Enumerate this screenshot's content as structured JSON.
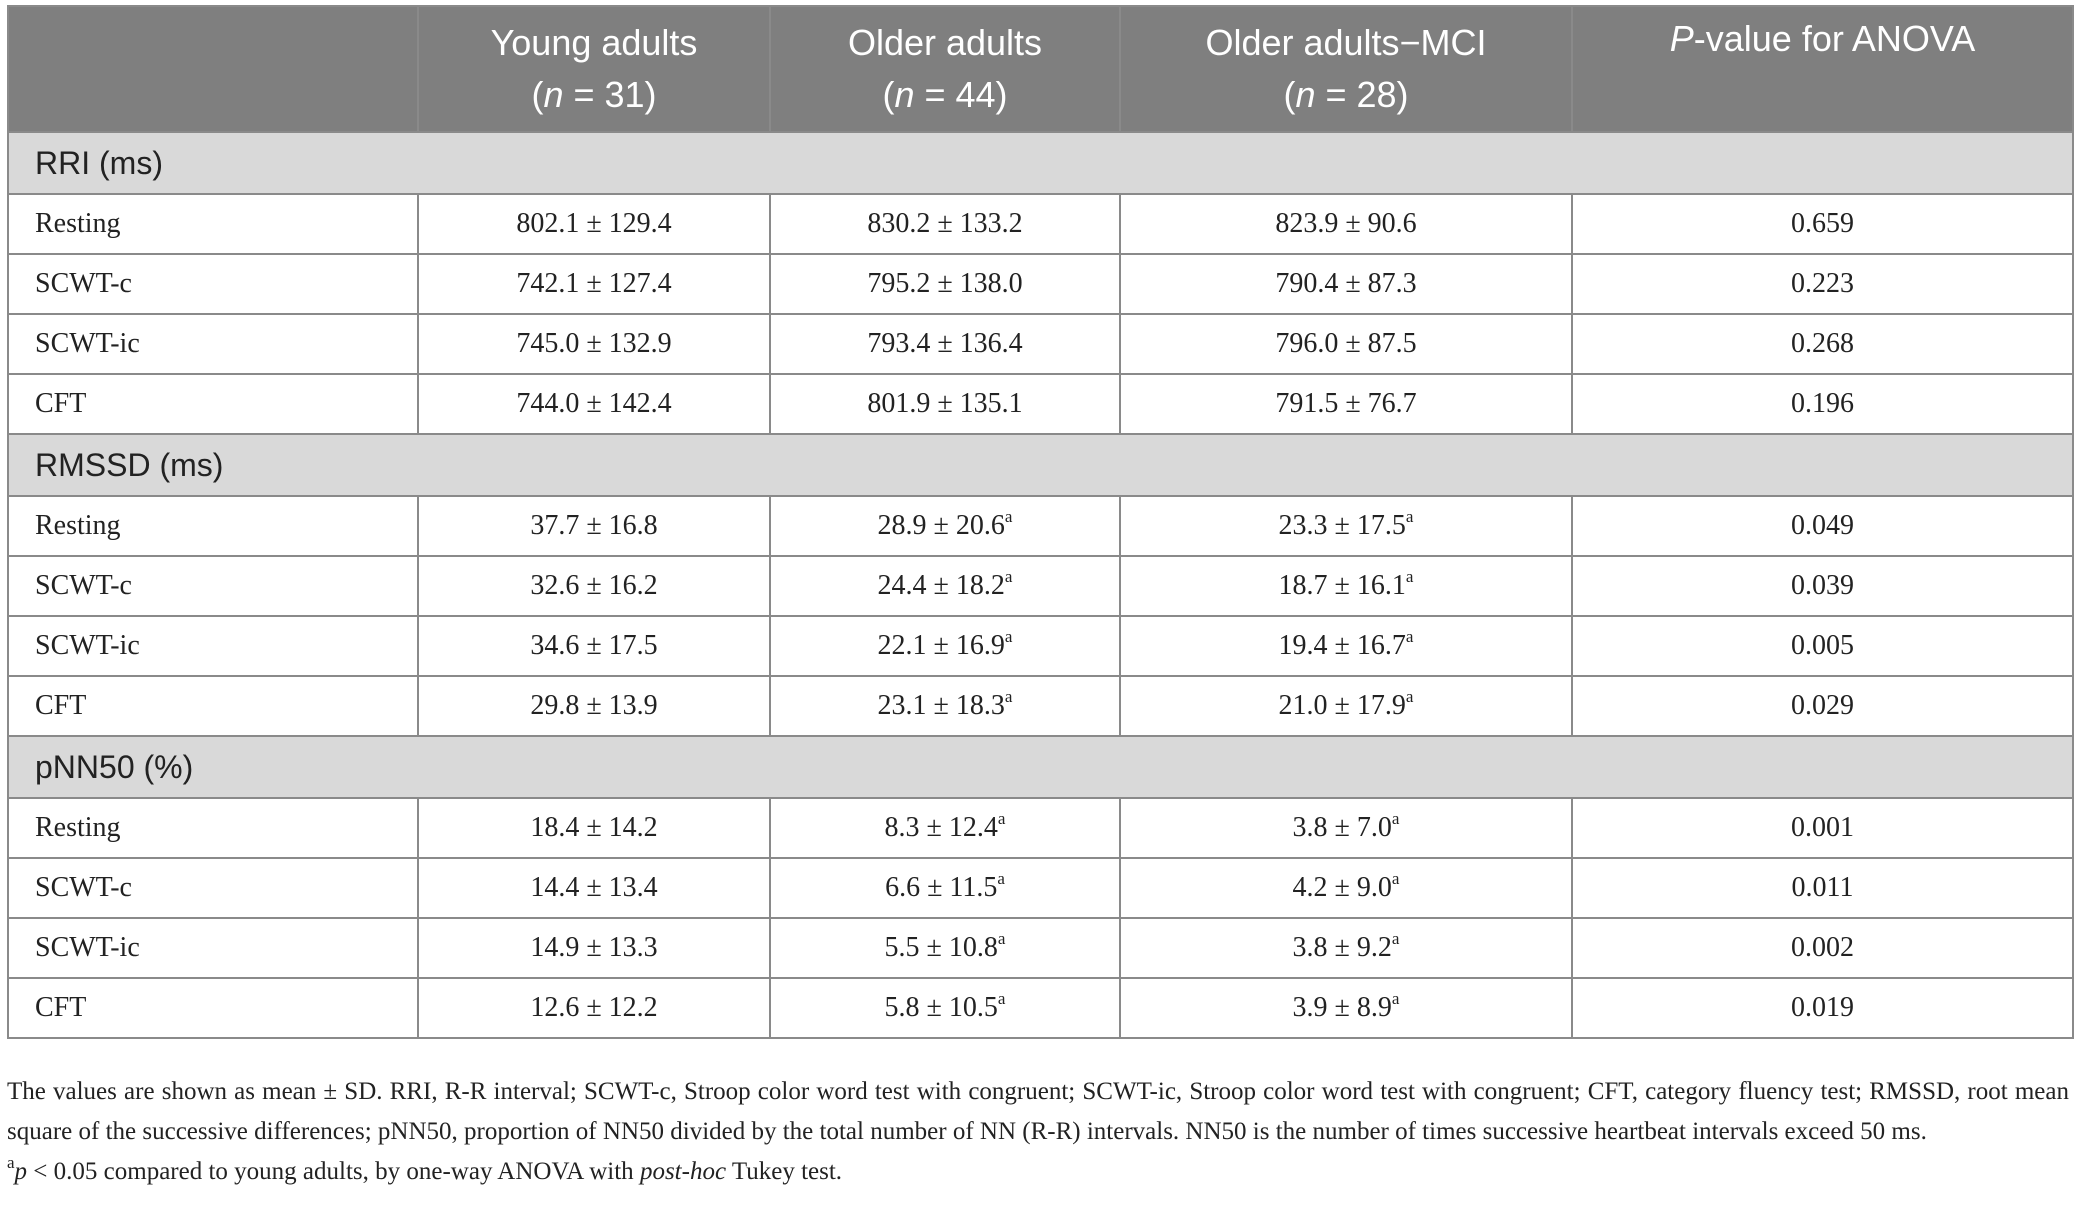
{
  "header": {
    "col1": {
      "name": "Young adults",
      "n_prefix": "(",
      "n_symbol": "n",
      "n_value": " = 31)"
    },
    "col2": {
      "name": "Older adults",
      "n_prefix": "(",
      "n_symbol": "n",
      "n_value": " = 44)"
    },
    "col3": {
      "name": "Older adults−MCI",
      "n_prefix": "(",
      "n_symbol": "n",
      "n_value": " = 28)"
    },
    "col4": {
      "italic": "P",
      "rest": "-value for ANOVA"
    }
  },
  "sections": [
    {
      "title": "RRI (ms)",
      "rows": [
        {
          "label": "Resting",
          "young": "802.1 ± 129.4",
          "older": "830.2 ± 133.2",
          "older_sup": "",
          "mci": "823.9 ± 90.6",
          "mci_sup": "",
          "p": "0.659"
        },
        {
          "label": "SCWT-c",
          "young": "742.1 ± 127.4",
          "older": "795.2 ± 138.0",
          "older_sup": "",
          "mci": "790.4 ± 87.3",
          "mci_sup": "",
          "p": "0.223"
        },
        {
          "label": "SCWT-ic",
          "young": "745.0 ± 132.9",
          "older": "793.4 ± 136.4",
          "older_sup": "",
          "mci": "796.0 ± 87.5",
          "mci_sup": "",
          "p": "0.268"
        },
        {
          "label": "CFT",
          "young": "744.0 ± 142.4",
          "older": "801.9 ± 135.1",
          "older_sup": "",
          "mci": "791.5 ± 76.7",
          "mci_sup": "",
          "p": "0.196"
        }
      ]
    },
    {
      "title": "RMSSD (ms)",
      "rows": [
        {
          "label": "Resting",
          "young": "37.7 ± 16.8",
          "older": "28.9 ± 20.6",
          "older_sup": "a",
          "mci": "23.3 ± 17.5",
          "mci_sup": "a",
          "p": "0.049"
        },
        {
          "label": "SCWT-c",
          "young": "32.6 ± 16.2",
          "older": "24.4 ± 18.2",
          "older_sup": "a",
          "mci": "18.7 ± 16.1",
          "mci_sup": "a",
          "p": "0.039"
        },
        {
          "label": "SCWT-ic",
          "young": "34.6 ± 17.5",
          "older": "22.1 ± 16.9",
          "older_sup": "a",
          "mci": "19.4 ± 16.7",
          "mci_sup": "a",
          "p": "0.005"
        },
        {
          "label": "CFT",
          "young": "29.8 ± 13.9",
          "older": "23.1 ± 18.3",
          "older_sup": "a",
          "mci": "21.0 ± 17.9",
          "mci_sup": "a",
          "p": "0.029"
        }
      ]
    },
    {
      "title": "pNN50 (%)",
      "rows": [
        {
          "label": "Resting",
          "young": "18.4 ± 14.2",
          "older": "8.3 ± 12.4",
          "older_sup": "a",
          "mci": "3.8 ± 7.0",
          "mci_sup": "a",
          "p": "0.001"
        },
        {
          "label": "SCWT-c",
          "young": "14.4 ± 13.4",
          "older": "6.6 ± 11.5",
          "older_sup": "a",
          "mci": "4.2 ± 9.0",
          "mci_sup": "a",
          "p": "0.011"
        },
        {
          "label": "SCWT-ic",
          "young": "14.9 ± 13.3",
          "older": "5.5 ± 10.8",
          "older_sup": "a",
          "mci": "3.8 ± 9.2",
          "mci_sup": "a",
          "p": "0.002"
        },
        {
          "label": "CFT",
          "young": "12.6 ± 12.2",
          "older": "5.8 ± 10.5",
          "older_sup": "a",
          "mci": "3.9 ± 8.9",
          "mci_sup": "a",
          "p": "0.019"
        }
      ]
    }
  ],
  "footnotes": {
    "main": "The values are shown as mean ± SD. RRI, R-R interval; SCWT-c, Stroop color word test with congruent; SCWT-ic, Stroop color word test with congruent; CFT, category fluency test; RMSSD, root mean square of the successive differences; pNN50, proportion of NN50 divided by the total number of NN (R-R) intervals. NN50 is the number of times successive heartbeat intervals exceed 50 ms.",
    "a_marker": "a",
    "a_p": "p",
    "a_text1": " < 0.05 compared to young adults, by one-way ANOVA with ",
    "a_italic": "post-hoc",
    "a_text2": " Tukey test."
  },
  "colors": {
    "header_bg": "#7f7f7f",
    "section_bg": "#d9d9d9",
    "border": "#8a8a8a"
  }
}
